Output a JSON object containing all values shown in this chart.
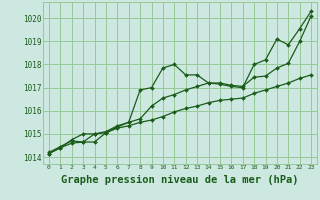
{
  "background_color": "#cce8e0",
  "grid_color": "#98c898",
  "line_color": "#1a5c1a",
  "marker_color": "#1a5c1a",
  "xlabel": "Graphe pression niveau de la mer (hPa)",
  "xlabel_fontsize": 7.5,
  "xlabel_bold": true,
  "xlim": [
    -0.5,
    23.5
  ],
  "ylim": [
    1013.7,
    1020.7
  ],
  "xticks": [
    0,
    1,
    2,
    3,
    4,
    5,
    6,
    7,
    8,
    9,
    10,
    11,
    12,
    13,
    14,
    15,
    16,
    17,
    18,
    19,
    20,
    21,
    22,
    23
  ],
  "yticks": [
    1014,
    1015,
    1016,
    1017,
    1018,
    1019,
    1020
  ],
  "series": [
    [
      1014.2,
      1014.45,
      1014.7,
      1014.65,
      1015.0,
      1015.05,
      1015.3,
      1015.5,
      1016.9,
      1017.0,
      1017.85,
      1018.0,
      1017.55,
      1017.55,
      1017.2,
      1017.15,
      1017.05,
      1017.0,
      1018.0,
      1018.2,
      1019.1,
      1018.85,
      1019.55,
      1020.3
    ],
    [
      1014.15,
      1014.4,
      1014.75,
      1015.0,
      1015.0,
      1015.1,
      1015.35,
      1015.5,
      1015.65,
      1016.2,
      1016.55,
      1016.7,
      1016.9,
      1017.05,
      1017.2,
      1017.2,
      1017.1,
      1017.05,
      1017.45,
      1017.5,
      1017.85,
      1018.05,
      1019.0,
      1020.1
    ],
    [
      1014.15,
      1014.4,
      1014.6,
      1014.65,
      1014.65,
      1015.05,
      1015.25,
      1015.35,
      1015.5,
      1015.6,
      1015.75,
      1015.95,
      1016.1,
      1016.2,
      1016.35,
      1016.45,
      1016.5,
      1016.55,
      1016.75,
      1016.9,
      1017.05,
      1017.2,
      1017.4,
      1017.55
    ]
  ]
}
